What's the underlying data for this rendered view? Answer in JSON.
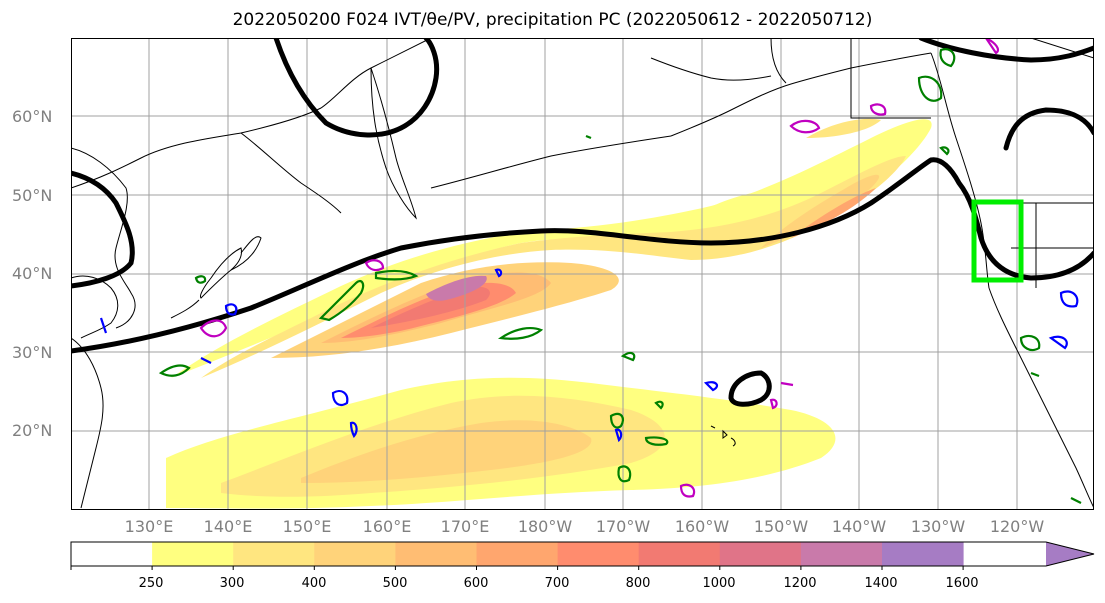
{
  "title": "2022050200 F024 IVT/θe/PV, precipitation PC (2022050612 - 2022050712)",
  "map": {
    "lat_labels": [
      "60°N",
      "50°N",
      "40°N",
      "30°N",
      "20°N"
    ],
    "lon_labels": [
      "130°E",
      "140°E",
      "150°E",
      "160°E",
      "170°E",
      "180°W",
      "170°W",
      "160°W",
      "150°W",
      "140°W",
      "130°W",
      "120°W"
    ]
  },
  "colorbar": {
    "ticks": [
      "250",
      "300",
      "400",
      "500",
      "600",
      "700",
      "800",
      "1000",
      "1200",
      "1400",
      "1600"
    ],
    "colors": [
      "#ffffff",
      "#ffff80",
      "#ffe680",
      "#ffd37a",
      "#ffbd73",
      "#ffa66e",
      "#ff8c6e",
      "#f27a72",
      "#e07488",
      "#c97aaa",
      "#a67cc4"
    ]
  },
  "colors": {
    "contour_black": "#000000",
    "contour_green": "#008000",
    "contour_blue": "#0000ff",
    "contour_magenta": "#c000c0",
    "box_highlight": "#00ee00"
  }
}
